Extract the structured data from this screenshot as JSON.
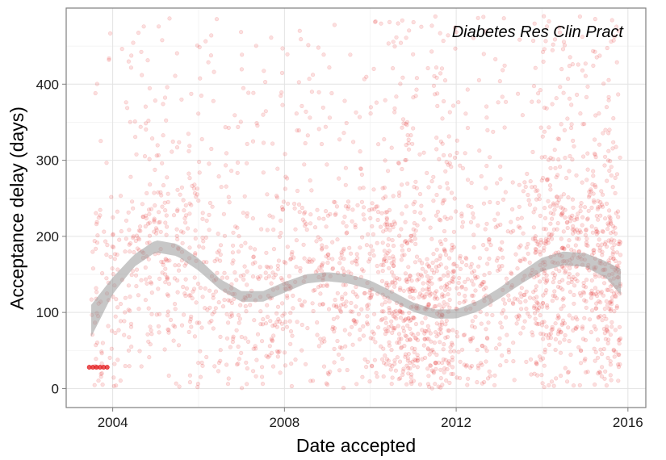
{
  "chart_data": {
    "type": "scatter",
    "title": "",
    "annotation": "Diabetes Res Clin Pract",
    "xlabel": "Date accepted",
    "ylabel": "Acceptance delay (days)",
    "x_ticks": [
      "2004",
      "2008",
      "2012",
      "2016"
    ],
    "y_ticks": [
      "0",
      "100",
      "200",
      "300",
      "400"
    ],
    "xlim": [
      "2002-12-01",
      "2016-06-01"
    ],
    "ylim": [
      -25,
      500
    ],
    "grid": true,
    "point_color": "#e31a1c",
    "point_alpha": 0.14,
    "band_color": "#999999",
    "smooth_trend": {
      "name": "",
      "x": [
        "2003-07-01",
        "2004-01-01",
        "2004-07-01",
        "2005-01-01",
        "2005-07-01",
        "2006-01-01",
        "2006-07-01",
        "2007-01-01",
        "2007-07-01",
        "2008-01-01",
        "2008-07-01",
        "2009-01-01",
        "2009-07-01",
        "2010-01-01",
        "2010-07-01",
        "2011-01-01",
        "2011-07-01",
        "2012-01-01",
        "2012-07-01",
        "2013-01-01",
        "2013-07-01",
        "2014-01-01",
        "2014-07-01",
        "2015-01-01",
        "2015-07-01",
        "2015-11-01"
      ],
      "y": [
        88,
        135,
        168,
        187,
        182,
        163,
        137,
        121,
        121,
        133,
        144,
        147,
        144,
        136,
        122,
        107,
        98,
        98,
        108,
        125,
        145,
        163,
        171,
        169,
        156,
        140
      ],
      "lower": [
        68,
        124,
        160,
        179,
        174,
        155,
        130,
        114,
        114,
        126,
        138,
        141,
        138,
        130,
        116,
        101,
        92,
        92,
        101,
        118,
        137,
        154,
        162,
        160,
        145,
        123
      ],
      "upper": [
        110,
        146,
        176,
        195,
        190,
        171,
        144,
        128,
        128,
        140,
        150,
        153,
        150,
        142,
        128,
        113,
        104,
        104,
        115,
        132,
        153,
        172,
        180,
        178,
        167,
        157
      ]
    },
    "highlight_points": {
      "x": [
        "2003-06-15",
        "2003-07-15",
        "2003-08-15",
        "2003-09-15",
        "2003-10-15",
        "2003-11-15"
      ],
      "y": [
        28,
        28,
        28,
        28,
        28,
        28
      ]
    },
    "scatter_generation": {
      "seed": 42,
      "count": 2600,
      "x_range": [
        "2003-07-01",
        "2015-11-01"
      ],
      "y_range": [
        0,
        490
      ]
    }
  }
}
